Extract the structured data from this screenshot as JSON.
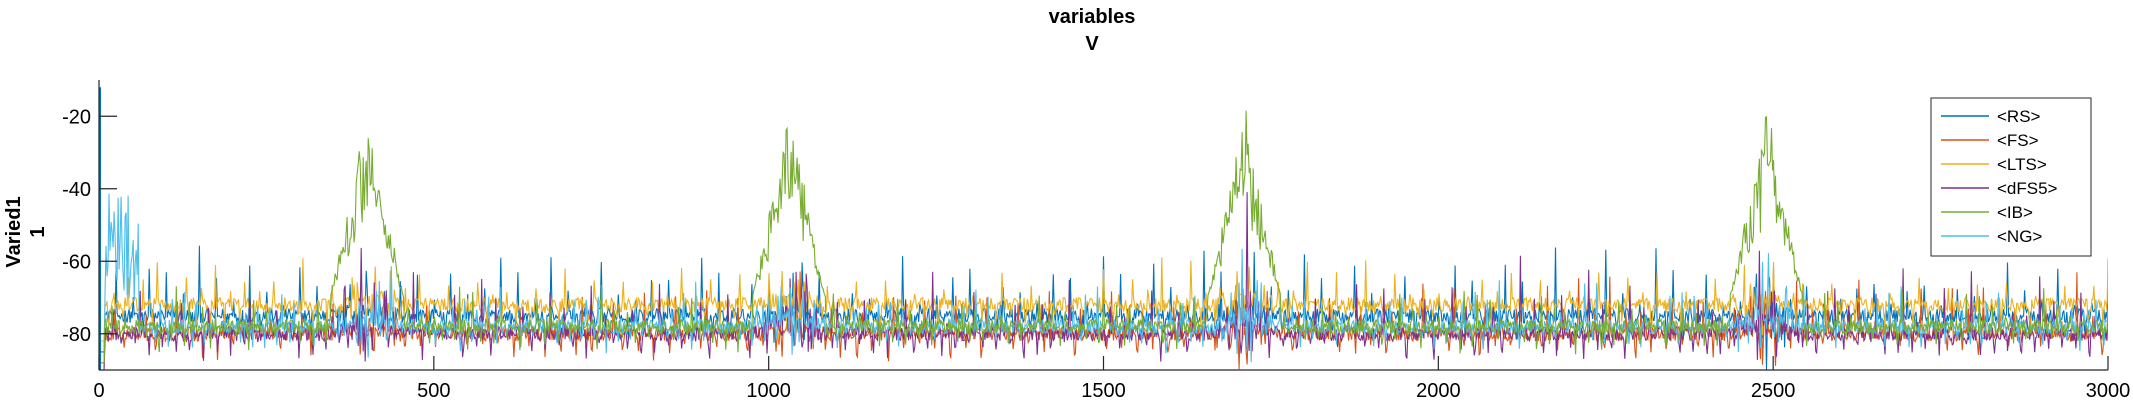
{
  "chart_data": {
    "type": "line",
    "title": [
      "variables",
      "V"
    ],
    "ylabel": [
      "Varied1",
      "1"
    ],
    "xlabel": "",
    "xlim": [
      0,
      3000
    ],
    "ylim": [
      -90,
      -10
    ],
    "xticks": [
      0,
      500,
      1000,
      1500,
      2000,
      2500,
      3000
    ],
    "yticks": [
      -80,
      -60,
      -40,
      -20
    ],
    "grid": false,
    "legend_position": "top-right",
    "bursts": [
      400,
      1030,
      1710,
      2490
    ],
    "series": [
      {
        "name": "<RS>",
        "color": "#0072BD",
        "baseline": -75,
        "amplitude": 12,
        "peak": -62
      },
      {
        "name": "<FS>",
        "color": "#D95319",
        "baseline": -80,
        "amplitude": 12,
        "peak": -65
      },
      {
        "name": "<LTS>",
        "color": "#EDB120",
        "baseline": -72,
        "amplitude": 10,
        "peak": -58
      },
      {
        "name": "<dFS5>",
        "color": "#7E2F8E",
        "baseline": -80,
        "amplitude": 14,
        "peak": -48
      },
      {
        "name": "<IB>",
        "color": "#77AC30",
        "baseline": -78,
        "amplitude": 8,
        "peak": -15
      },
      {
        "name": "<NG>",
        "color": "#4DBEEE",
        "baseline": -78,
        "amplitude": 10,
        "peak": -55
      }
    ]
  }
}
